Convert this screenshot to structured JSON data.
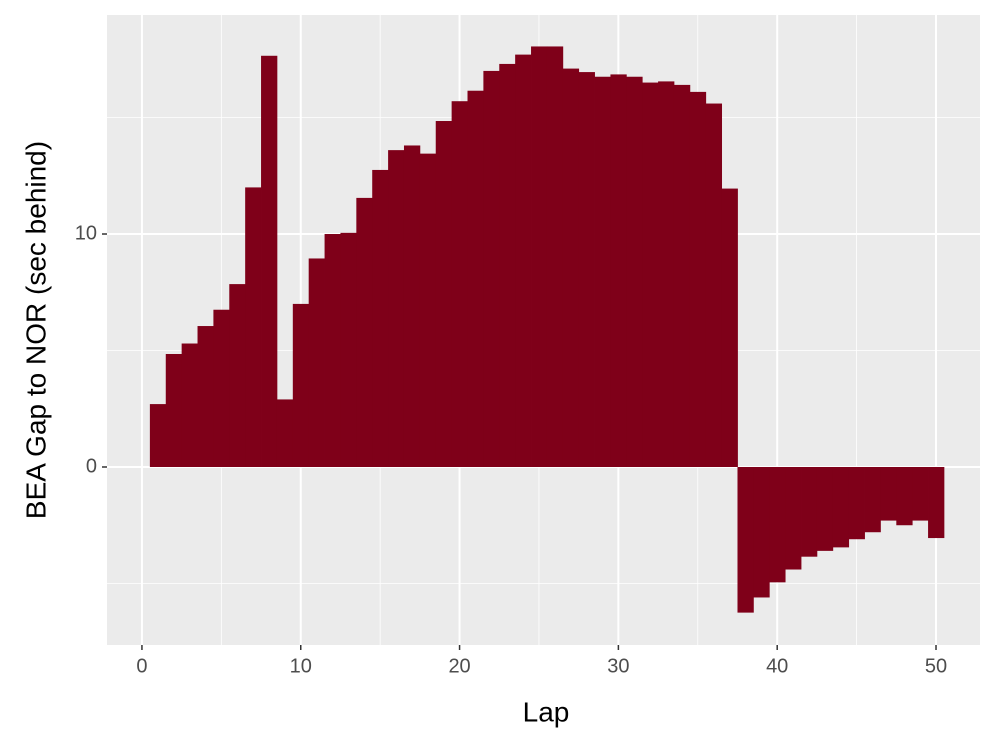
{
  "chart_data": {
    "type": "bar",
    "x_label": "Lap",
    "y_label": "BEA Gap to NOR (sec behind)",
    "x": [
      1,
      2,
      3,
      4,
      5,
      6,
      7,
      8,
      9,
      10,
      11,
      12,
      13,
      14,
      15,
      16,
      17,
      18,
      19,
      20,
      21,
      22,
      23,
      24,
      25,
      26,
      27,
      28,
      29,
      30,
      31,
      32,
      33,
      34,
      35,
      36,
      37,
      38,
      39,
      40,
      41,
      42,
      43,
      44,
      45,
      46,
      47,
      48,
      49,
      50
    ],
    "values": [
      2.7,
      4.85,
      5.3,
      6.05,
      6.75,
      7.85,
      12.0,
      17.65,
      2.9,
      7.0,
      8.95,
      10.0,
      10.05,
      11.55,
      12.75,
      13.6,
      13.8,
      13.45,
      14.85,
      15.7,
      16.15,
      17.0,
      17.3,
      17.7,
      18.05,
      18.05,
      17.1,
      16.95,
      16.75,
      16.85,
      16.75,
      16.5,
      16.55,
      16.4,
      16.1,
      15.6,
      11.95,
      -6.25,
      -5.6,
      -4.95,
      -4.4,
      -3.85,
      -3.6,
      -3.45,
      -3.1,
      -2.8,
      -2.3,
      -2.5,
      -2.3,
      -3.05
    ],
    "color": "#7f0019",
    "xlim": [
      -2.2,
      52.77
    ],
    "ylim": [
      -7.64,
      19.4
    ],
    "xticks": [
      0,
      10,
      20,
      30,
      40,
      50
    ],
    "yticks": [
      0,
      10
    ],
    "minor_xticks": [
      5,
      15,
      25,
      35,
      45
    ],
    "minor_yticks": [
      -5,
      5,
      15
    ],
    "grid": true
  }
}
